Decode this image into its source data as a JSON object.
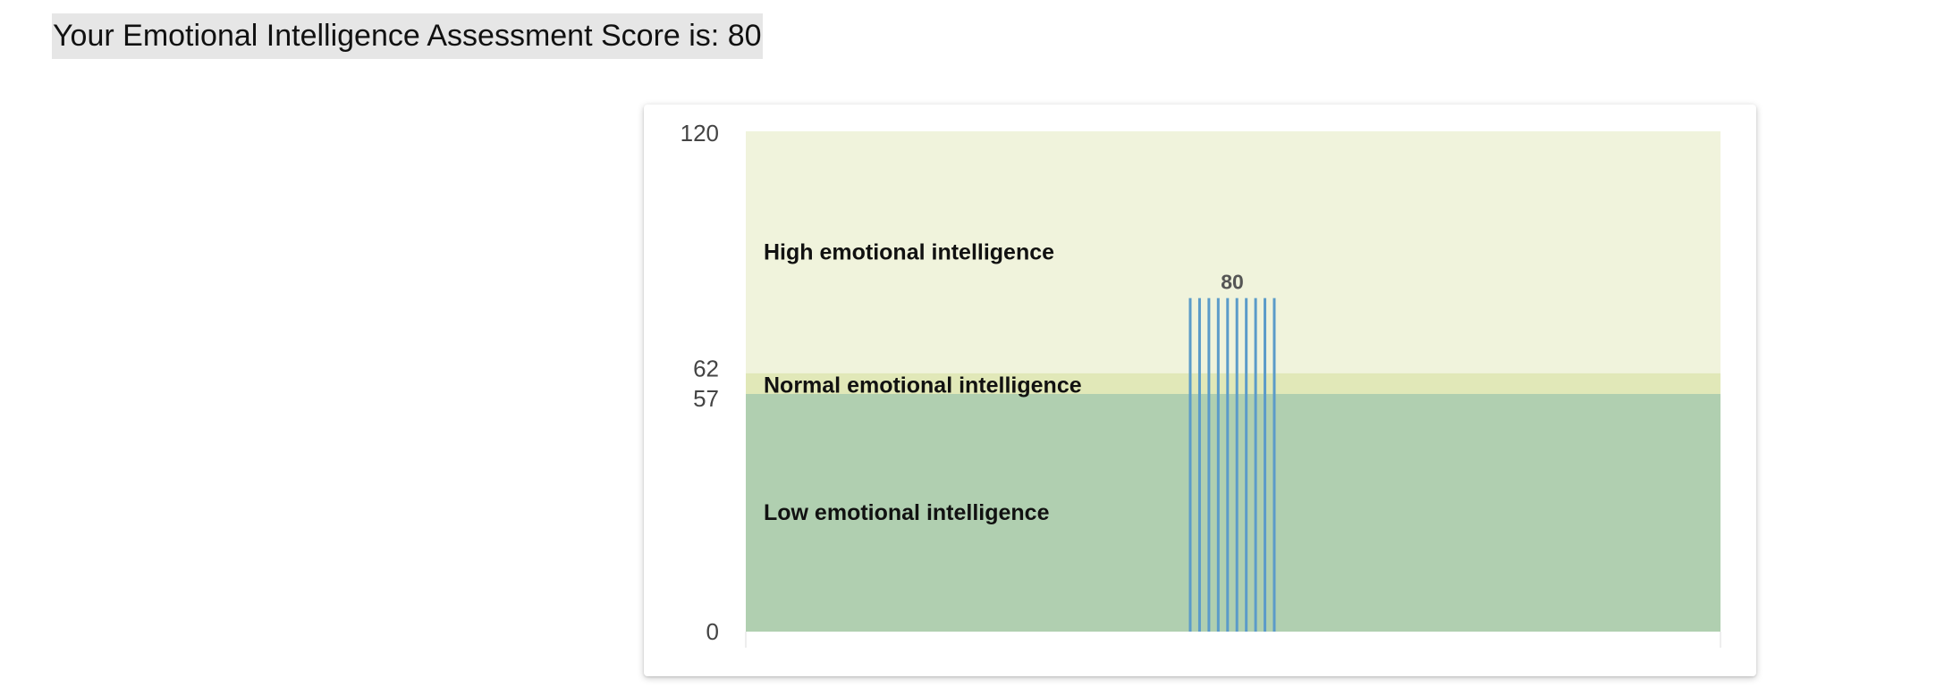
{
  "heading": "Your Emotional Intelligence Assessment Score is: 80",
  "chart_data": {
    "type": "bar",
    "title": "",
    "xlabel": "",
    "ylabel": "",
    "ylim": [
      0,
      120
    ],
    "y_ticks": [
      {
        "value": 0,
        "label": "0"
      },
      {
        "value": 57,
        "label": "57"
      },
      {
        "value": 62,
        "label": "62"
      },
      {
        "value": 120,
        "label": "120"
      }
    ],
    "bands": [
      {
        "from": 0,
        "to": 57,
        "label": "Low emotional intelligence",
        "color": "#b0cfb0"
      },
      {
        "from": 57,
        "to": 62,
        "label": "Normal emotional intelligence",
        "color": "#e1e8b8"
      },
      {
        "from": 62,
        "to": 120,
        "label": "High emotional intelligence",
        "color": "#f0f3dc"
      }
    ],
    "categories": [
      ""
    ],
    "values": [
      80
    ],
    "value_labels": [
      "80"
    ],
    "bar_color": "#5b9bc9",
    "bar_pattern": "vertical-stripes",
    "grid": false,
    "legend": "none"
  }
}
